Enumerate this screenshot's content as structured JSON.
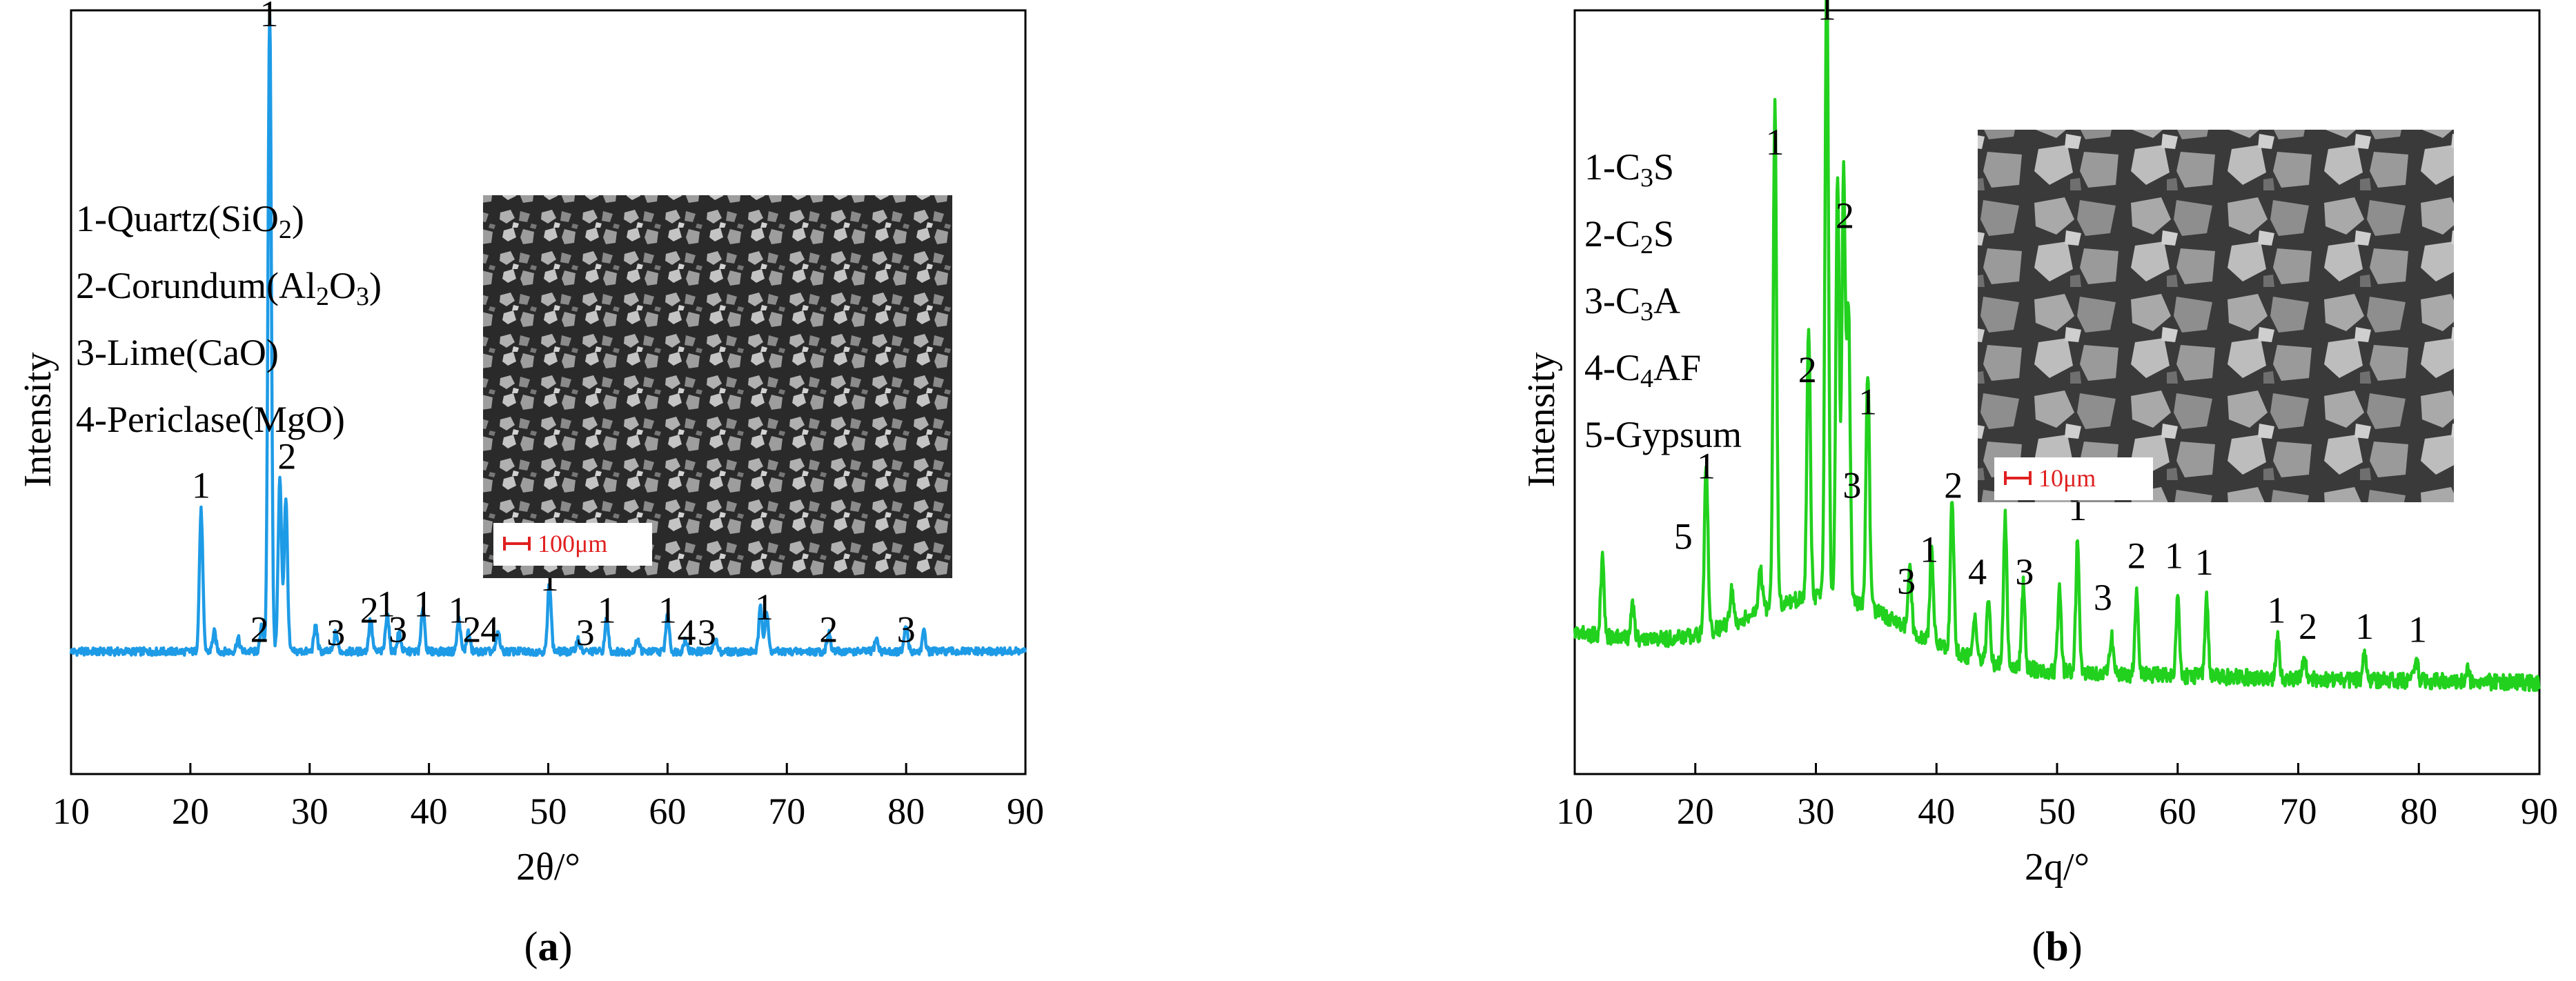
{
  "chart_data": [
    {
      "type": "line",
      "panel_label": "(a)",
      "xlabel": "2θ/°",
      "ylabel": "Intensity",
      "xlim": [
        10,
        90
      ],
      "xticks": [
        10,
        20,
        30,
        40,
        50,
        60,
        70,
        80,
        90
      ],
      "yticks_shown": false,
      "line_color": "#1e9be6",
      "legend": [
        {
          "num": "1",
          "name": "Quartz",
          "formula": [
            [
              "(SiO",
              false
            ],
            [
              "2",
              true
            ],
            [
              ")",
              false
            ]
          ]
        },
        {
          "num": "2",
          "name": "Corundum",
          "formula": [
            [
              "(Al",
              false
            ],
            [
              "2",
              true
            ],
            [
              "O",
              false
            ],
            [
              "3",
              true
            ],
            [
              ")",
              false
            ]
          ]
        },
        {
          "num": "3",
          "name": "Lime",
          "formula": [
            [
              "(CaO)",
              false
            ]
          ]
        },
        {
          "num": "4",
          "name": "Periclase",
          "formula": [
            [
              "(MgO)",
              false
            ]
          ]
        }
      ],
      "baseline": 0.06,
      "noise": 0.012,
      "hump": null,
      "peaks": [
        {
          "x": 20.9,
          "h": 0.22
        },
        {
          "x": 22.0,
          "h": 0.03
        },
        {
          "x": 24.0,
          "h": 0.02
        },
        {
          "x": 26.0,
          "h": 0.04
        },
        {
          "x": 26.65,
          "h": 1.0
        },
        {
          "x": 27.5,
          "h": 0.27
        },
        {
          "x": 28.0,
          "h": 0.24
        },
        {
          "x": 30.5,
          "h": 0.04
        },
        {
          "x": 32.2,
          "h": 0.03
        },
        {
          "x": 35.1,
          "h": 0.05
        },
        {
          "x": 36.5,
          "h": 0.06
        },
        {
          "x": 37.5,
          "h": 0.03
        },
        {
          "x": 39.5,
          "h": 0.07
        },
        {
          "x": 42.5,
          "h": 0.05
        },
        {
          "x": 43.3,
          "h": 0.03
        },
        {
          "x": 45.8,
          "h": 0.03
        },
        {
          "x": 50.1,
          "h": 0.11
        },
        {
          "x": 52.5,
          "h": 0.02
        },
        {
          "x": 54.9,
          "h": 0.05
        },
        {
          "x": 57.5,
          "h": 0.02
        },
        {
          "x": 60.0,
          "h": 0.06
        },
        {
          "x": 61.5,
          "h": 0.02
        },
        {
          "x": 64.0,
          "h": 0.02
        },
        {
          "x": 67.8,
          "h": 0.07
        },
        {
          "x": 68.3,
          "h": 0.06
        },
        {
          "x": 73.5,
          "h": 0.03
        },
        {
          "x": 77.5,
          "h": 0.02
        },
        {
          "x": 80.0,
          "h": 0.04
        },
        {
          "x": 81.5,
          "h": 0.03
        }
      ],
      "annotations": [
        {
          "x": 26.6,
          "text": "1",
          "y": 1.035
        },
        {
          "x": 20.9,
          "text": "1",
          "y": 0.3
        },
        {
          "x": 25.8,
          "text": "2",
          "y": 0.075
        },
        {
          "x": 28.1,
          "text": "2",
          "y": 0.345
        },
        {
          "x": 32.2,
          "text": "3",
          "y": 0.07
        },
        {
          "x": 35.0,
          "text": "2",
          "y": 0.105
        },
        {
          "x": 36.4,
          "text": "1",
          "y": 0.115
        },
        {
          "x": 37.4,
          "text": "3",
          "y": 0.075
        },
        {
          "x": 39.5,
          "text": "1",
          "y": 0.115
        },
        {
          "x": 42.4,
          "text": "1",
          "y": 0.105
        },
        {
          "x": 43.6,
          "text": "2",
          "y": 0.075
        },
        {
          "x": 45.1,
          "text": "4",
          "y": 0.075
        },
        {
          "x": 50.1,
          "text": "1",
          "y": 0.155
        },
        {
          "x": 53.1,
          "text": "3",
          "y": 0.07
        },
        {
          "x": 54.9,
          "text": "1",
          "y": 0.105
        },
        {
          "x": 60.0,
          "text": "1",
          "y": 0.105
        },
        {
          "x": 61.6,
          "text": "4",
          "y": 0.07
        },
        {
          "x": 63.3,
          "text": "3",
          "y": 0.07
        },
        {
          "x": 68.1,
          "text": "1",
          "y": 0.11
        },
        {
          "x": 73.5,
          "text": "2",
          "y": 0.075
        },
        {
          "x": 80.0,
          "text": "3",
          "y": 0.075
        }
      ],
      "inset_scale": "100μm"
    },
    {
      "type": "line",
      "panel_label": "(b)",
      "xlabel": "2q/°",
      "ylabel": "Intensity",
      "xlim": [
        10,
        90
      ],
      "xticks": [
        10,
        20,
        30,
        40,
        50,
        60,
        70,
        80,
        90
      ],
      "yticks_shown": false,
      "line_color": "#22d11e",
      "legend": [
        {
          "parts": [
            [
              "1-C",
              false
            ],
            [
              "3",
              true
            ],
            [
              "S",
              false
            ]
          ]
        },
        {
          "parts": [
            [
              "2-C",
              false
            ],
            [
              "2",
              true
            ],
            [
              "S",
              false
            ]
          ]
        },
        {
          "parts": [
            [
              "3-C",
              false
            ],
            [
              "3",
              true
            ],
            [
              "A",
              false
            ]
          ]
        },
        {
          "parts": [
            [
              "4-C",
              false
            ],
            [
              "4",
              true
            ],
            [
              "AF",
              false
            ]
          ]
        },
        {
          "parts": [
            [
              "5-Gypsum",
              false
            ]
          ]
        }
      ],
      "baseline": 0.03,
      "noise": 0.025,
      "hump": {
        "center": 31,
        "width": 9,
        "height": 0.1
      },
      "peaks": [
        {
          "x": 12.3,
          "h": 0.12
        },
        {
          "x": 14.8,
          "h": 0.05
        },
        {
          "x": 20.9,
          "h": 0.27
        },
        {
          "x": 23.0,
          "h": 0.05
        },
        {
          "x": 25.4,
          "h": 0.07
        },
        {
          "x": 26.6,
          "h": 0.78
        },
        {
          "x": 29.4,
          "h": 0.42
        },
        {
          "x": 30.9,
          "h": 1.0
        },
        {
          "x": 31.8,
          "h": 0.66
        },
        {
          "x": 32.3,
          "h": 0.67
        },
        {
          "x": 32.7,
          "h": 0.45
        },
        {
          "x": 34.3,
          "h": 0.37
        },
        {
          "x": 37.8,
          "h": 0.09
        },
        {
          "x": 39.6,
          "h": 0.14
        },
        {
          "x": 41.3,
          "h": 0.24
        },
        {
          "x": 43.2,
          "h": 0.07
        },
        {
          "x": 44.3,
          "h": 0.1
        },
        {
          "x": 45.7,
          "h": 0.23
        },
        {
          "x": 47.2,
          "h": 0.13
        },
        {
          "x": 50.2,
          "h": 0.13
        },
        {
          "x": 51.7,
          "h": 0.21
        },
        {
          "x": 54.5,
          "h": 0.06
        },
        {
          "x": 56.6,
          "h": 0.13
        },
        {
          "x": 60.0,
          "h": 0.12
        },
        {
          "x": 62.4,
          "h": 0.12
        },
        {
          "x": 68.3,
          "h": 0.06
        },
        {
          "x": 70.5,
          "h": 0.03
        },
        {
          "x": 75.5,
          "h": 0.04
        },
        {
          "x": 79.8,
          "h": 0.03
        },
        {
          "x": 84.0,
          "h": 0.02
        }
      ],
      "annotations": [
        {
          "x": 30.9,
          "text": "1",
          "y": 1.045
        },
        {
          "x": 26.6,
          "text": "1",
          "y": 0.835
        },
        {
          "x": 29.3,
          "text": "2",
          "y": 0.48
        },
        {
          "x": 32.4,
          "text": "2",
          "y": 0.72
        },
        {
          "x": 34.3,
          "text": "1",
          "y": 0.43
        },
        {
          "x": 33.0,
          "text": "3",
          "y": 0.3
        },
        {
          "x": 20.9,
          "text": "1",
          "y": 0.33
        },
        {
          "x": 19.0,
          "text": "5",
          "y": 0.22
        },
        {
          "x": 37.5,
          "text": "3",
          "y": 0.15
        },
        {
          "x": 39.4,
          "text": "1",
          "y": 0.2
        },
        {
          "x": 41.4,
          "text": "2",
          "y": 0.3
        },
        {
          "x": 43.4,
          "text": "4",
          "y": 0.165
        },
        {
          "x": 45.6,
          "text": "1",
          "y": 0.295
        },
        {
          "x": 47.3,
          "text": "3",
          "y": 0.165
        },
        {
          "x": 51.7,
          "text": "1",
          "y": 0.265
        },
        {
          "x": 53.8,
          "text": "3",
          "y": 0.125
        },
        {
          "x": 56.6,
          "text": "2",
          "y": 0.19
        },
        {
          "x": 59.7,
          "text": "1",
          "y": 0.19
        },
        {
          "x": 62.2,
          "text": "1",
          "y": 0.18
        },
        {
          "x": 68.2,
          "text": "1",
          "y": 0.105
        },
        {
          "x": 70.8,
          "text": "2",
          "y": 0.08
        },
        {
          "x": 75.5,
          "text": "1",
          "y": 0.08
        },
        {
          "x": 79.9,
          "text": "1",
          "y": 0.075
        }
      ],
      "inset_scale": "10μm"
    }
  ]
}
